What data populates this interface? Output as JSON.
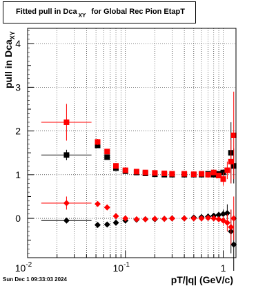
{
  "title_main": "Fitted pull in Dca",
  "title_sub": "XY",
  "title_rest": "for Global Rec Pion EtapT",
  "date": "Sun Dec  1 09:33:03 2024",
  "chart_data": {
    "type": "scatter",
    "title": "Fitted pull in Dca_XY for Global Rec Pion EtapT",
    "xlabel": "pT/|q| (GeV/c)",
    "ylabel": "pull in Dca_XY",
    "xscale": "log",
    "xlim": [
      0.01,
      1.35
    ],
    "ylim": [
      -0.9,
      4.35
    ],
    "x_ticks": [
      {
        "v": 0.01,
        "label": "10^-2"
      },
      {
        "v": 0.1,
        "label": "10^-1"
      },
      {
        "v": 1,
        "label": "1"
      }
    ],
    "y_ticks": [
      0,
      1,
      2,
      3,
      4
    ],
    "grid": true,
    "series": [
      {
        "role": "sigma",
        "color": "#000000",
        "marker": "square",
        "points": [
          {
            "x": 0.025,
            "y": 1.45,
            "ex": [
              0.0138,
              0.045
            ],
            "ey": 0.12
          },
          {
            "x": 0.052,
            "y": 1.67,
            "ey": 0.05
          },
          {
            "x": 0.065,
            "y": 1.4,
            "ey": 0.03
          },
          {
            "x": 0.08,
            "y": 1.15
          },
          {
            "x": 0.1,
            "y": 1.08
          },
          {
            "x": 0.13,
            "y": 1.05
          },
          {
            "x": 0.16,
            "y": 1.03
          },
          {
            "x": 0.2,
            "y": 1.01
          },
          {
            "x": 0.25,
            "y": 1.0
          },
          {
            "x": 0.3,
            "y": 1.0
          },
          {
            "x": 0.4,
            "y": 1.0
          },
          {
            "x": 0.5,
            "y": 1.0
          },
          {
            "x": 0.6,
            "y": 1.0
          },
          {
            "x": 0.7,
            "y": 1.02
          },
          {
            "x": 0.8,
            "y": 1.0
          },
          {
            "x": 0.9,
            "y": 1.02
          },
          {
            "x": 1.0,
            "y": 1.05
          },
          {
            "x": 1.1,
            "y": 1.1
          },
          {
            "x": 1.2,
            "y": 1.5,
            "ey": 0.7
          },
          {
            "x": 1.28,
            "y": 1.2,
            "ey": 0.4
          }
        ]
      },
      {
        "role": "sigma",
        "color": "#ff0000",
        "marker": "square",
        "points": [
          {
            "x": 0.025,
            "y": 2.2,
            "ex": [
              0.0138,
              0.045
            ],
            "ey": 0.42
          },
          {
            "x": 0.052,
            "y": 1.75,
            "ey": 0.07
          },
          {
            "x": 0.065,
            "y": 1.53,
            "ey": 0.04
          },
          {
            "x": 0.08,
            "y": 1.2
          },
          {
            "x": 0.1,
            "y": 1.1
          },
          {
            "x": 0.13,
            "y": 1.07
          },
          {
            "x": 0.16,
            "y": 1.05
          },
          {
            "x": 0.2,
            "y": 1.04
          },
          {
            "x": 0.25,
            "y": 1.03
          },
          {
            "x": 0.3,
            "y": 1.02
          },
          {
            "x": 0.4,
            "y": 1.02
          },
          {
            "x": 0.5,
            "y": 1.01
          },
          {
            "x": 0.6,
            "y": 1.02
          },
          {
            "x": 0.7,
            "y": 1.0
          },
          {
            "x": 0.8,
            "y": 1.05
          },
          {
            "x": 0.9,
            "y": 0.98
          },
          {
            "x": 1.0,
            "y": 0.9,
            "ey": 0.15
          },
          {
            "x": 1.1,
            "y": 1.1,
            "ey": 0.2
          },
          {
            "x": 1.2,
            "y": 1.3,
            "ey": 0.5
          },
          {
            "x": 1.28,
            "y": 1.9,
            "ey": 1.0
          }
        ]
      },
      {
        "role": "mean",
        "color": "#000000",
        "marker": "diamond",
        "points": [
          {
            "x": 0.025,
            "y": -0.05,
            "ex": [
              0.0138,
              0.045
            ],
            "ey": 0.03
          },
          {
            "x": 0.052,
            "y": -0.15
          },
          {
            "x": 0.065,
            "y": -0.14
          },
          {
            "x": 0.08,
            "y": -0.1
          },
          {
            "x": 0.1,
            "y": -0.05
          },
          {
            "x": 0.13,
            "y": -0.03
          },
          {
            "x": 0.16,
            "y": -0.02
          },
          {
            "x": 0.2,
            "y": -0.02
          },
          {
            "x": 0.25,
            "y": -0.01
          },
          {
            "x": 0.3,
            "y": 0.0
          },
          {
            "x": 0.4,
            "y": 0.0
          },
          {
            "x": 0.5,
            "y": 0.02
          },
          {
            "x": 0.6,
            "y": 0.03
          },
          {
            "x": 0.7,
            "y": 0.04
          },
          {
            "x": 0.8,
            "y": 0.06
          },
          {
            "x": 0.9,
            "y": 0.08
          },
          {
            "x": 1.0,
            "y": 0.1,
            "ey": 0.1
          },
          {
            "x": 1.1,
            "y": 0.12,
            "ey": 0.2
          },
          {
            "x": 1.2,
            "y": -0.3,
            "ey": 0.5
          },
          {
            "x": 1.28,
            "y": -0.6,
            "ey": 0.6
          }
        ]
      },
      {
        "role": "mean",
        "color": "#ff0000",
        "marker": "diamond",
        "points": [
          {
            "x": 0.025,
            "y": 0.35,
            "ex": [
              0.0138,
              0.045
            ],
            "ey": 0.15
          },
          {
            "x": 0.052,
            "y": 0.33
          },
          {
            "x": 0.065,
            "y": 0.25
          },
          {
            "x": 0.08,
            "y": 0.05
          },
          {
            "x": 0.1,
            "y": 0.0
          },
          {
            "x": 0.13,
            "y": -0.02
          },
          {
            "x": 0.16,
            "y": -0.02
          },
          {
            "x": 0.2,
            "y": -0.01
          },
          {
            "x": 0.25,
            "y": -0.01
          },
          {
            "x": 0.3,
            "y": 0.0
          },
          {
            "x": 0.4,
            "y": 0.0
          },
          {
            "x": 0.5,
            "y": 0.0
          },
          {
            "x": 0.6,
            "y": 0.0
          },
          {
            "x": 0.7,
            "y": 0.01
          },
          {
            "x": 0.8,
            "y": 0.0
          },
          {
            "x": 0.9,
            "y": -0.02
          },
          {
            "x": 1.0,
            "y": -0.05,
            "ey": 0.1
          },
          {
            "x": 1.1,
            "y": -0.1,
            "ey": 0.2
          },
          {
            "x": 1.2,
            "y": -0.2,
            "ey": 0.4
          },
          {
            "x": 1.28,
            "y": 0.0,
            "ey": 0.5
          }
        ]
      }
    ]
  }
}
